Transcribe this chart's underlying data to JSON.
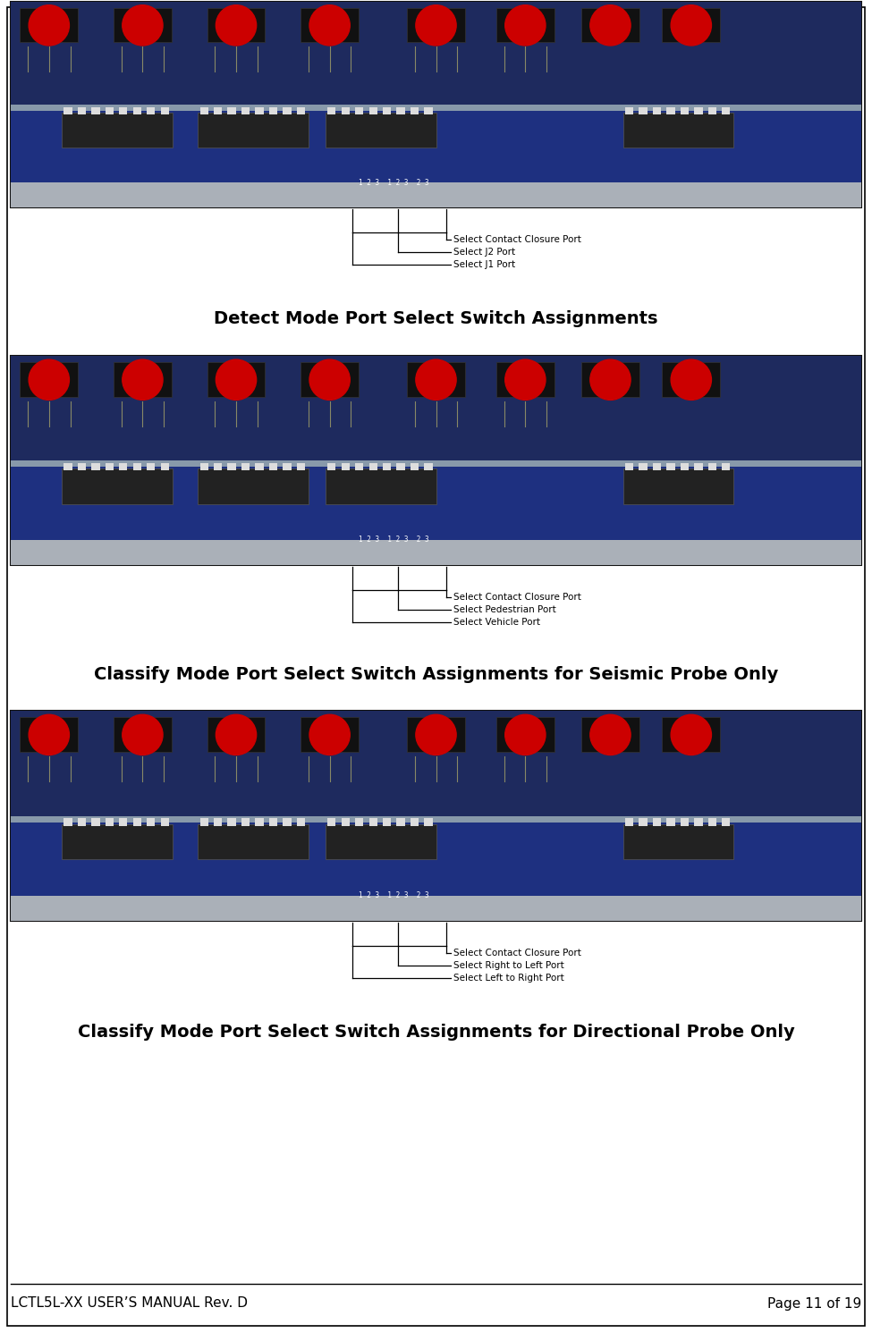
{
  "page_width": 9.75,
  "page_height": 14.91,
  "dpi": 100,
  "background_color": "#ffffff",
  "border_color": "#000000",
  "footer_left": "LCTL5L-XX USER’S MANUAL Rev. D",
  "footer_right": "Page 11 of 19",
  "footer_fontsize": 11,
  "sections": [
    {
      "caption": "Detect Mode Port Select Switch Assignments",
      "labels": [
        "Select Contact Closure Port",
        "Select J2 Port",
        "Select J1 Port"
      ]
    },
    {
      "caption": "Classify Mode Port Select Switch Assignments for Seismic Probe Only",
      "labels": [
        "Select Contact Closure Port",
        "Select Pedestrian Port",
        "Select Vehicle Port"
      ]
    },
    {
      "caption": "Classify Mode Port Select Switch Assignments for Directional Probe Only",
      "labels": [
        "Select Contact Closure Port",
        "Select Right to Left Port",
        "Select Left to Right Port"
      ]
    }
  ],
  "caption_fontsize": 14,
  "caption_bold": true,
  "annotation_fontsize": 7.5,
  "line_color": "#000000",
  "photo_border_color": "#000000"
}
